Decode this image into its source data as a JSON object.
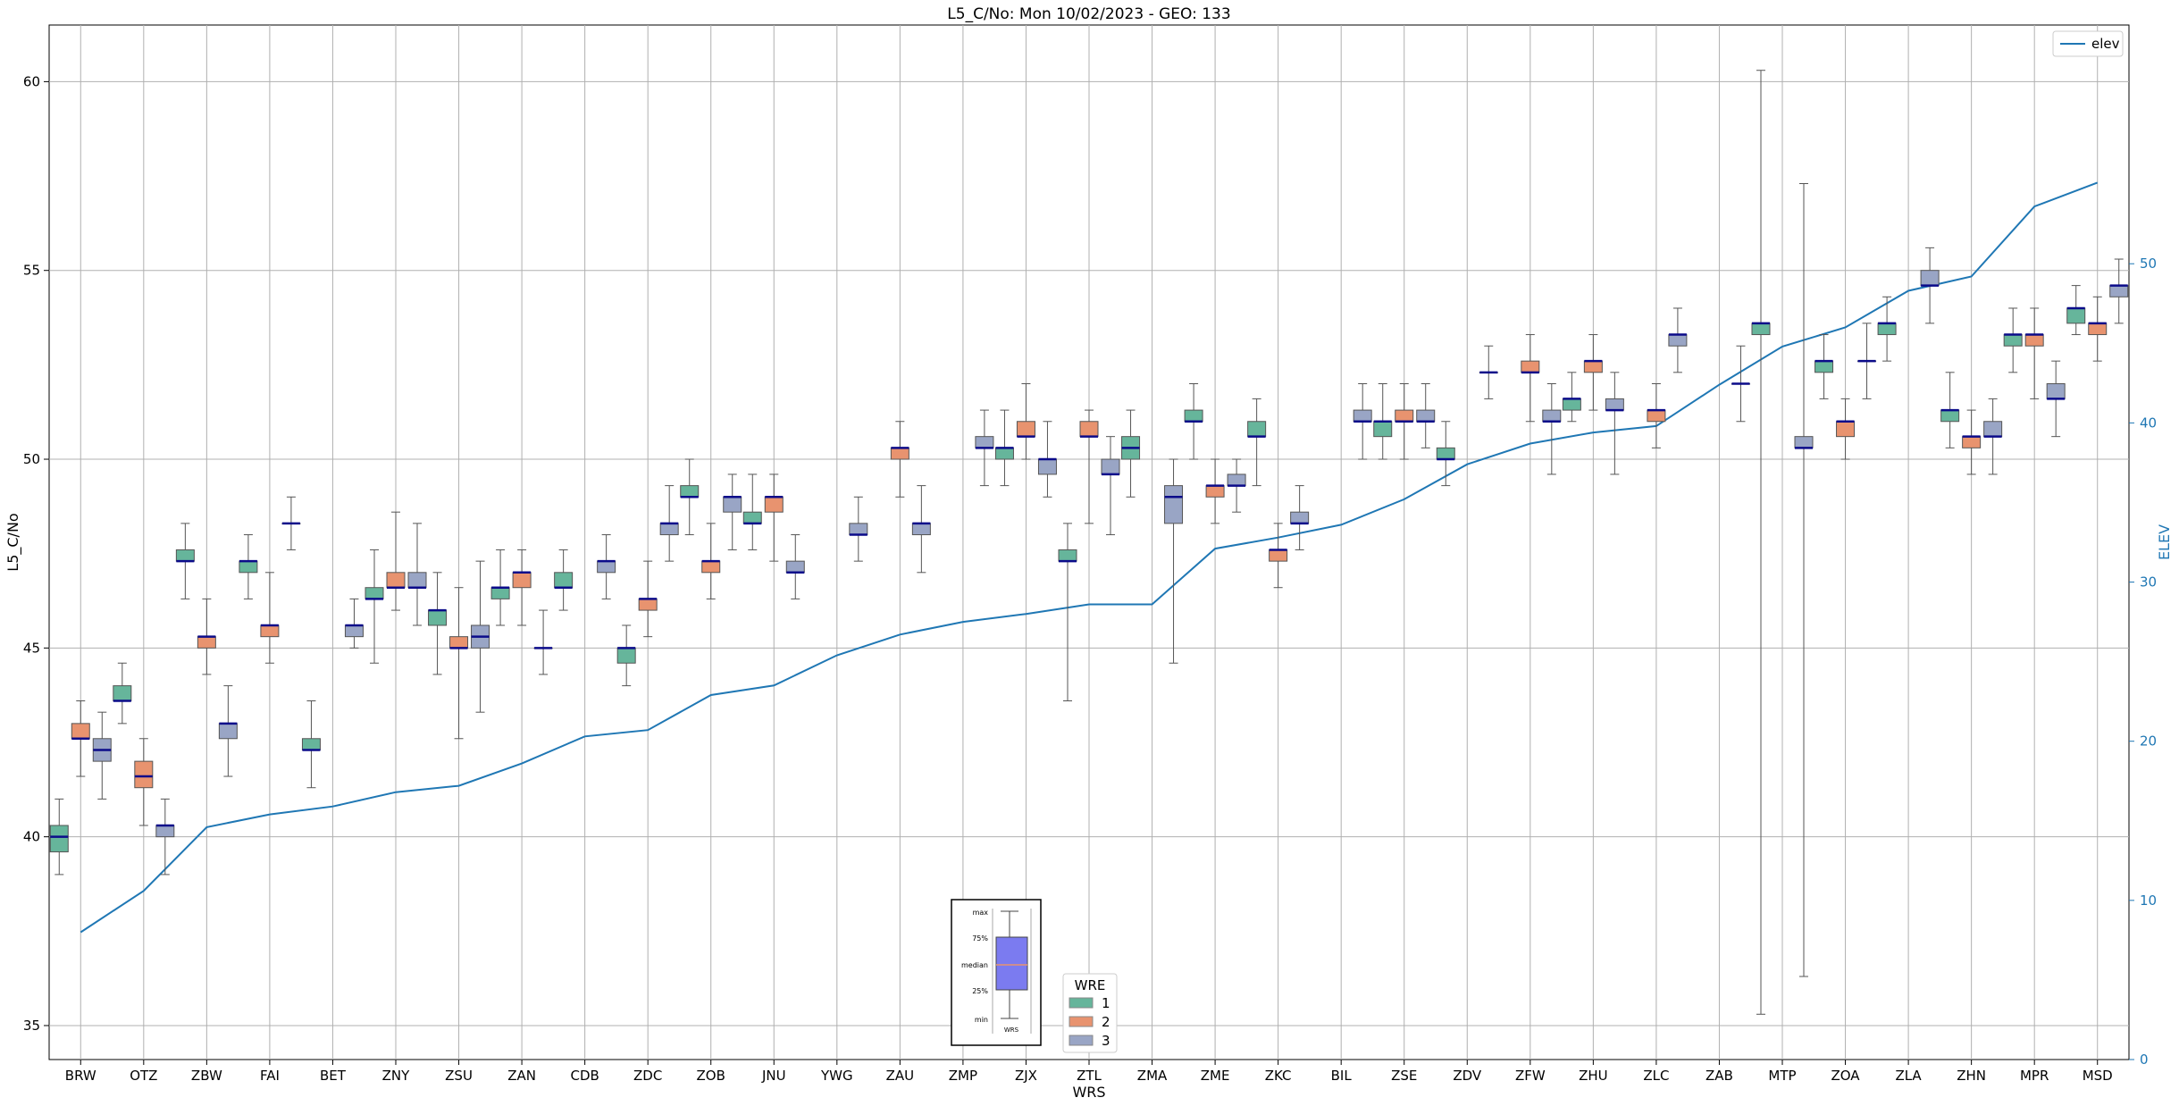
{
  "chart_data": {
    "type": "box",
    "title": "L5_C/No: Mon 10/02/2023 - GEO: 133",
    "xlabel": "WRS",
    "ylabel": "L5_C/No",
    "y2label": "ELEV",
    "ylim": [
      34.1,
      61.5
    ],
    "y2lim": [
      0,
      65
    ],
    "yticks": [
      "35",
      "40",
      "45",
      "50",
      "55",
      "60"
    ],
    "y2ticks": [
      "0",
      "10",
      "20",
      "30",
      "40",
      "50"
    ],
    "grid": true,
    "categories": [
      "BRW",
      "OTZ",
      "ZBW",
      "FAI",
      "BET",
      "ZNY",
      "ZSU",
      "ZAN",
      "CDB",
      "ZDC",
      "ZOB",
      "JNU",
      "YWG",
      "ZAU",
      "ZMP",
      "ZJX",
      "ZTL",
      "ZMA",
      "ZME",
      "ZKC",
      "BIL",
      "ZSE",
      "ZDV",
      "ZFW",
      "ZHU",
      "ZLC",
      "ZAB",
      "MTP",
      "ZOA",
      "ZLA",
      "ZHN",
      "MPR",
      "MSD"
    ],
    "series": [
      {
        "name": "1",
        "color": "#66b59b",
        "boxes": [
          [
            39.0,
            39.6,
            40.0,
            40.3,
            41.0
          ],
          [
            43.0,
            43.6,
            43.6,
            44.0,
            44.6
          ],
          [
            46.3,
            47.3,
            47.3,
            47.6,
            48.3
          ],
          [
            46.3,
            47.0,
            47.3,
            47.3,
            48.0
          ],
          [
            41.3,
            42.3,
            42.3,
            42.6,
            43.6
          ],
          [
            44.6,
            46.3,
            46.3,
            46.6,
            47.6
          ],
          [
            44.3,
            45.6,
            46.0,
            46.0,
            47.0
          ],
          [
            45.6,
            46.3,
            46.6,
            46.6,
            47.6
          ],
          [
            46.0,
            46.6,
            46.6,
            47.0,
            47.6
          ],
          [
            44.0,
            44.6,
            45.0,
            45.0,
            45.6
          ],
          [
            48.0,
            49.0,
            49.0,
            49.3,
            50.0
          ],
          [
            47.6,
            48.3,
            48.3,
            48.6,
            49.6
          ],
          null,
          null,
          null,
          [
            49.3,
            50.0,
            50.3,
            50.3,
            51.3
          ],
          [
            43.6,
            47.3,
            47.3,
            47.6,
            48.3
          ],
          [
            49.0,
            50.0,
            50.3,
            50.6,
            51.3
          ],
          [
            50.0,
            51.0,
            51.0,
            51.3,
            52.0
          ],
          [
            49.3,
            50.6,
            50.6,
            51.0,
            51.6
          ],
          null,
          [
            50.0,
            50.6,
            51.0,
            51.0,
            52.0
          ],
          [
            49.3,
            50.0,
            50.0,
            50.3,
            51.0
          ],
          null,
          [
            51.0,
            51.3,
            51.6,
            51.6,
            52.3
          ],
          null,
          null,
          [
            35.3,
            53.3,
            53.6,
            53.6,
            60.3
          ],
          [
            51.6,
            52.3,
            52.6,
            52.6,
            53.3
          ],
          [
            52.6,
            53.3,
            53.6,
            53.6,
            54.3
          ],
          [
            50.3,
            51.0,
            51.3,
            51.3,
            52.3
          ],
          [
            52.3,
            53.0,
            53.3,
            53.3,
            54.0
          ],
          [
            53.3,
            53.6,
            54.0,
            54.0,
            54.6
          ]
        ]
      },
      {
        "name": "2",
        "color": "#e8936f",
        "boxes": [
          [
            41.6,
            42.6,
            42.6,
            43.0,
            43.6
          ],
          [
            40.3,
            41.3,
            41.6,
            42.0,
            42.6
          ],
          [
            44.3,
            45.0,
            45.3,
            45.3,
            46.3
          ],
          [
            44.6,
            45.3,
            45.6,
            45.6,
            47.0
          ],
          null,
          [
            46.0,
            46.6,
            46.6,
            47.0,
            48.6
          ],
          [
            42.6,
            45.0,
            45.0,
            45.3,
            46.6
          ],
          [
            45.6,
            46.6,
            47.0,
            47.0,
            47.6
          ],
          null,
          [
            45.3,
            46.0,
            46.3,
            46.3,
            47.3
          ],
          [
            46.3,
            47.0,
            47.3,
            47.3,
            48.3
          ],
          [
            47.3,
            48.6,
            49.0,
            49.0,
            49.6
          ],
          null,
          [
            49.0,
            50.0,
            50.3,
            50.3,
            51.0
          ],
          null,
          [
            50.0,
            50.6,
            50.6,
            51.0,
            52.0
          ],
          [
            48.3,
            50.6,
            50.6,
            51.0,
            51.3
          ],
          null,
          [
            48.3,
            49.0,
            49.3,
            49.3,
            50.0
          ],
          [
            46.6,
            47.3,
            47.6,
            47.6,
            48.3
          ],
          null,
          [
            50.0,
            51.0,
            51.0,
            51.3,
            52.0
          ],
          null,
          [
            51.0,
            52.3,
            52.3,
            52.6,
            53.3
          ],
          [
            51.3,
            52.3,
            52.6,
            52.6,
            53.3
          ],
          [
            50.3,
            51.0,
            51.3,
            51.3,
            52.0
          ],
          null,
          null,
          [
            50.0,
            50.6,
            51.0,
            51.0,
            51.6
          ],
          null,
          [
            49.6,
            50.3,
            50.6,
            50.6,
            51.3
          ],
          [
            51.6,
            53.0,
            53.3,
            53.3,
            54.0
          ],
          [
            52.6,
            53.3,
            53.6,
            53.6,
            54.3
          ]
        ]
      },
      {
        "name": "3",
        "color": "#99a5c5",
        "boxes": [
          [
            41.0,
            42.0,
            42.3,
            42.6,
            43.3
          ],
          [
            39.0,
            40.0,
            40.3,
            40.3,
            41.0
          ],
          [
            41.6,
            42.6,
            43.0,
            43.0,
            44.0
          ],
          [
            47.6,
            48.3,
            48.3,
            48.3,
            49.0
          ],
          [
            45.0,
            45.3,
            45.6,
            45.6,
            46.3
          ],
          [
            45.6,
            46.6,
            46.6,
            47.0,
            48.3
          ],
          [
            43.3,
            45.0,
            45.3,
            45.6,
            47.3
          ],
          [
            44.3,
            45.0,
            45.0,
            45.0,
            46.0
          ],
          [
            46.3,
            47.0,
            47.3,
            47.3,
            48.0
          ],
          [
            47.3,
            48.0,
            48.3,
            48.3,
            49.3
          ],
          [
            47.6,
            48.6,
            49.0,
            49.0,
            49.6
          ],
          [
            46.3,
            47.0,
            47.0,
            47.3,
            48.0
          ],
          [
            47.3,
            48.0,
            48.0,
            48.3,
            49.0
          ],
          [
            47.0,
            48.0,
            48.3,
            48.3,
            49.3
          ],
          [
            49.3,
            50.3,
            50.3,
            50.6,
            51.3
          ],
          [
            49.0,
            49.6,
            50.0,
            50.0,
            51.0
          ],
          [
            48.0,
            49.6,
            49.6,
            50.0,
            50.6
          ],
          [
            44.6,
            48.3,
            49.0,
            49.3,
            50.0
          ],
          [
            48.6,
            49.3,
            49.3,
            49.6,
            50.0
          ],
          [
            47.6,
            48.3,
            48.3,
            48.6,
            49.3
          ],
          [
            50.0,
            51.0,
            51.0,
            51.3,
            52.0
          ],
          [
            50.3,
            51.0,
            51.0,
            51.3,
            52.0
          ],
          [
            51.6,
            52.3,
            52.3,
            52.3,
            53.0
          ],
          [
            49.6,
            51.0,
            51.0,
            51.3,
            52.0
          ],
          [
            49.6,
            51.3,
            51.3,
            51.6,
            52.3
          ],
          [
            52.3,
            53.0,
            53.3,
            53.3,
            54.0
          ],
          [
            51.0,
            52.0,
            52.0,
            52.0,
            53.0
          ],
          [
            36.3,
            50.3,
            50.3,
            50.6,
            57.3
          ],
          [
            51.6,
            52.6,
            52.6,
            52.6,
            53.6
          ],
          [
            53.6,
            54.6,
            54.6,
            55.0,
            55.6
          ],
          [
            49.6,
            50.6,
            50.6,
            51.0,
            51.6
          ],
          [
            50.6,
            51.6,
            51.6,
            52.0,
            52.6
          ],
          [
            53.6,
            54.3,
            54.6,
            54.6,
            55.3
          ]
        ]
      }
    ],
    "line": {
      "name": "elev",
      "color": "#1f77b4",
      "values": [
        8,
        10.6,
        14.6,
        15.4,
        15.9,
        16.8,
        17.2,
        18.6,
        20.3,
        20.7,
        22.9,
        23.5,
        25.4,
        26.7,
        27.5,
        28.0,
        28.6,
        28.6,
        32.1,
        32.8,
        33.6,
        35.2,
        37.4,
        38.7,
        39.4,
        39.8,
        42.4,
        44.8,
        46.0,
        48.3,
        49.2,
        53.6,
        55.1
      ]
    },
    "legend": {
      "line_legend_position": "top-right",
      "box_legend_title": "WRE",
      "box_legend_position": "bottom-center"
    },
    "inset_key": {
      "labels": [
        "max",
        "75%",
        "median",
        "25%",
        "min"
      ],
      "xlabel": "WRS",
      "box_color": "#7b7bf0",
      "median_color": "#e8936f"
    }
  }
}
